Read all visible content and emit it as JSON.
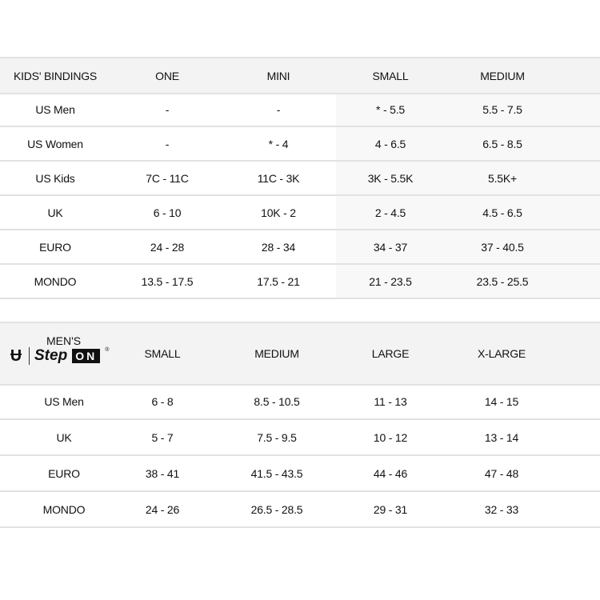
{
  "kids_table": {
    "headers": [
      "KIDS' BINDINGS",
      "ONE",
      "MINI",
      "SMALL",
      "MEDIUM"
    ],
    "rows": [
      [
        "US Men",
        "-",
        "-",
        "* - 5.5",
        "5.5 - 7.5"
      ],
      [
        "US Women",
        "-",
        "* - 4",
        "4 - 6.5",
        "6.5 - 8.5"
      ],
      [
        "US Kids",
        "7C - 11C",
        "11C - 3K",
        "3K - 5.5K",
        "5.5K+"
      ],
      [
        "UK",
        "6 - 10",
        "10K - 2",
        "2 - 4.5",
        "4.5 - 6.5"
      ],
      [
        "EURO",
        "24 - 28",
        "28 - 34",
        "34 - 37",
        "37 - 40.5"
      ],
      [
        "MONDO",
        "13.5 - 17.5",
        "17.5 - 21",
        "21 - 23.5",
        "23.5 - 25.5"
      ]
    ]
  },
  "mens_table": {
    "title": "MEN'S",
    "logo": {
      "brand_icon": "union-u-logo",
      "text": "Step",
      "badge": "ON",
      "mark": "®"
    },
    "headers": [
      "",
      "SMALL",
      "MEDIUM",
      "LARGE",
      "X-LARGE"
    ],
    "rows": [
      [
        "US Men",
        "6 - 8",
        "8.5 - 10.5",
        "11 - 13",
        "14 - 15"
      ],
      [
        "UK",
        "5 - 7",
        "7.5 - 9.5",
        "10 - 12",
        "13 - 14"
      ],
      [
        "EURO",
        "38 - 41",
        "41.5 - 43.5",
        "44 - 46",
        "47 - 48"
      ],
      [
        "MONDO",
        "24 - 26",
        "26.5 - 28.5",
        "29 - 31",
        "32 - 33"
      ]
    ]
  }
}
